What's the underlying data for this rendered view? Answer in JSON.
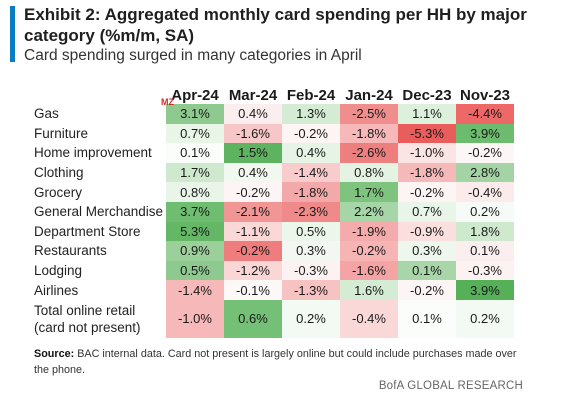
{
  "title": "Exhibit 2: Aggregated monthly card spending per HH by major category (%m/m, SA)",
  "subtitle": "Card spending surged in many categories in April",
  "watermark": "MZ",
  "columns": [
    "Apr-24",
    "Mar-24",
    "Feb-24",
    "Jan-24",
    "Dec-23",
    "Nov-23"
  ],
  "rows": [
    {
      "label": "Gas",
      "values": [
        "3.1%",
        "0.4%",
        "1.3%",
        "-2.5%",
        "1.1%",
        "-4.4%"
      ],
      "colors": [
        "#8ec98f",
        "#fbeeee",
        "#d3ecd3",
        "#f08e8e",
        "#ddf0dc",
        "#ef6868"
      ]
    },
    {
      "label": "Furniture",
      "values": [
        "0.7%",
        "-1.6%",
        "-0.2%",
        "-1.8%",
        "-5.3%",
        "3.9%"
      ],
      "colors": [
        "#e8f5e7",
        "#f7c6c6",
        "#fdf4f4",
        "#f6b8b8",
        "#ea5d5d",
        "#6cbb6e"
      ]
    },
    {
      "label": "Home improvement",
      "values": [
        "0.1%",
        "1.5%",
        "0.4%",
        "-2.6%",
        "-1.0%",
        "-0.2%"
      ],
      "colors": [
        "#fbfdfb",
        "#5db360",
        "#e6f4e5",
        "#ee7f7f",
        "#fbe4e4",
        "#fdf6f6"
      ]
    },
    {
      "label": "Clothing",
      "values": [
        "1.7%",
        "0.4%",
        "-1.4%",
        "0.8%",
        "-1.8%",
        "2.8%"
      ],
      "colors": [
        "#cfe9ce",
        "#f1f8f0",
        "#f8cccc",
        "#e4f3e3",
        "#f6b9b9",
        "#a4d4a5"
      ]
    },
    {
      "label": "Grocery",
      "values": [
        "0.8%",
        "-0.2%",
        "-1.8%",
        "1.7%",
        "-0.2%",
        "-0.4%"
      ],
      "colors": [
        "#e9f5e8",
        "#fdf5f5",
        "#f3a9a9",
        "#7ec47f",
        "#fdf4f4",
        "#fbebeb"
      ]
    },
    {
      "label": "General Merchandise",
      "values": [
        "3.7%",
        "-2.1%",
        "-2.3%",
        "2.2%",
        "0.7%",
        "0.2%"
      ],
      "colors": [
        "#6fbd71",
        "#f19595",
        "#f08a8a",
        "#a6d5a7",
        "#e9f5e8",
        "#f7fbf7"
      ]
    },
    {
      "label": "Department Store",
      "values": [
        "5.3%",
        "-1.1%",
        "0.5%",
        "-1.9%",
        "-0.9%",
        "1.8%"
      ],
      "colors": [
        "#63b765",
        "#fad8d8",
        "#ecf6eb",
        "#f4abab",
        "#fbdfdf",
        "#cfe9ce"
      ]
    },
    {
      "label": "Restaurants",
      "values": [
        "0.9%",
        "-0.2%",
        "0.3%",
        "-0.2%",
        "0.3%",
        "0.1%"
      ],
      "colors": [
        "#9bd09b",
        "#f07d7d",
        "#f2f8f1",
        "#f6b4b4",
        "#eef7ed",
        "#fbeeee"
      ]
    },
    {
      "label": "Lodging",
      "values": [
        "0.5%",
        "-1.2%",
        "-0.3%",
        "-1.6%",
        "0.1%",
        "-0.3%"
      ],
      "colors": [
        "#8ec98f",
        "#fad6d6",
        "#fdf2f2",
        "#f4a4a4",
        "#a9d6a9",
        "#fdf2f2"
      ]
    },
    {
      "label": "Airlines",
      "values": [
        "-1.4%",
        "-0.1%",
        "-1.3%",
        "1.6%",
        "-0.2%",
        "3.9%"
      ],
      "colors": [
        "#f6b8b8",
        "#fdf8f8",
        "#f7c2c2",
        "#d4ecd3",
        "#fdf5f5",
        "#55b058"
      ]
    },
    {
      "label": "Total online retail\n(card not present)",
      "values": [
        "-1.0%",
        "0.6%",
        "0.2%",
        "-0.4%",
        "0.1%",
        "0.2%"
      ],
      "colors": [
        "#f6b8b8",
        "#75c077",
        "#f3f9f3",
        "#fad8d8",
        "#fafdfa",
        "#f3f9f3"
      ]
    }
  ],
  "source_label": "Source:",
  "source_text": "BAC internal data. Card not present is largely online but could include purchases made over the phone.",
  "footer": "BofA GLOBAL RESEARCH"
}
